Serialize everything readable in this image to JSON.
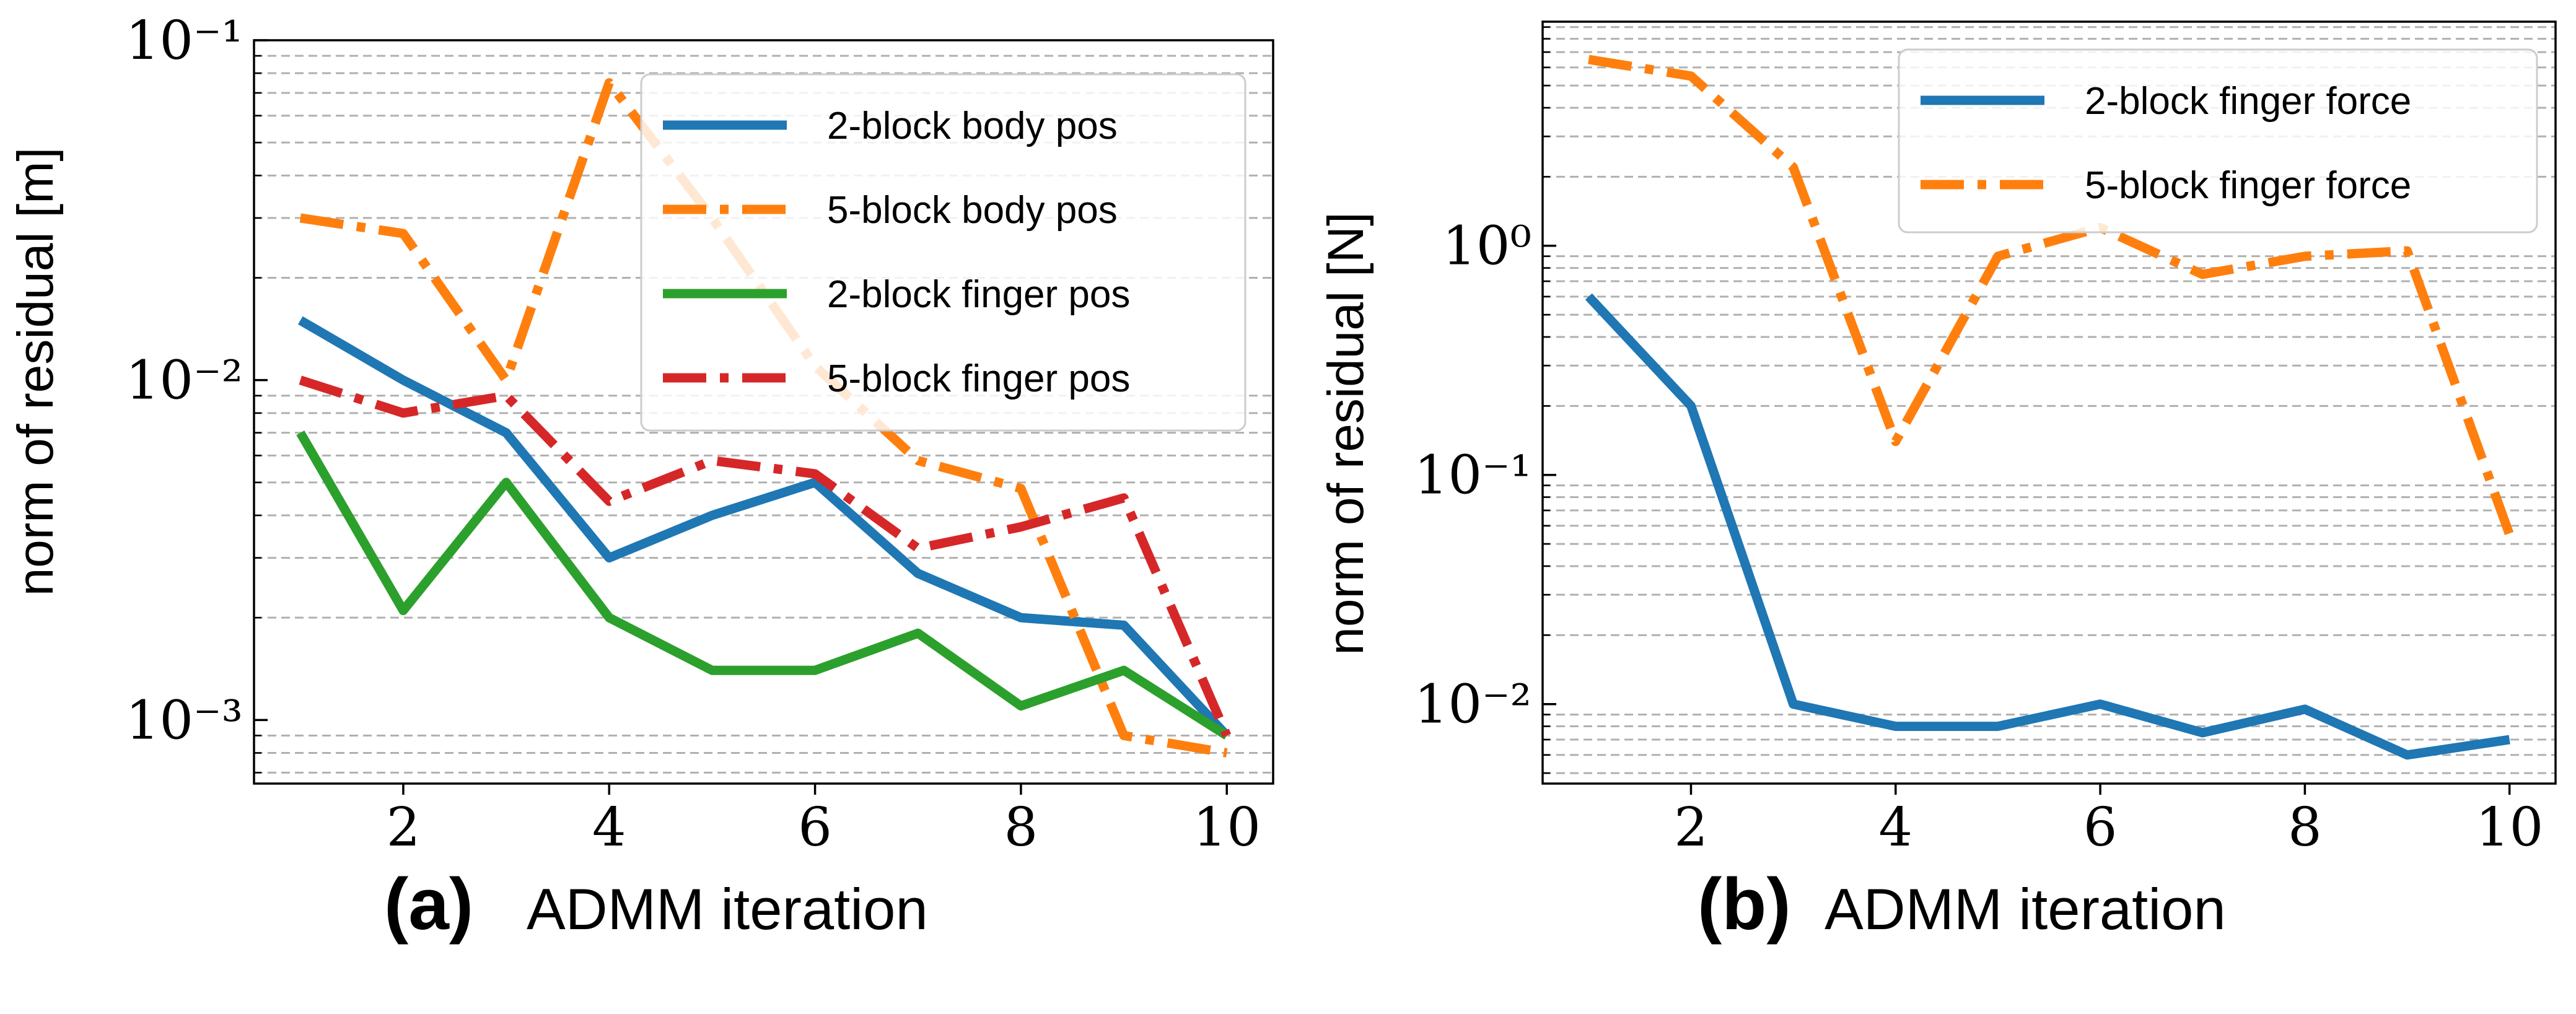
{
  "figure": {
    "panels": [
      {
        "letter": "(a)",
        "xlabel": "ADMM iteration"
      },
      {
        "letter": "(b)",
        "xlabel": "ADMM iteration"
      }
    ]
  },
  "chart_data": [
    {
      "type": "line",
      "title": "",
      "xlabel": "ADMM iteration",
      "ylabel": "norm of residual [m]",
      "yscale": "log",
      "xlim": [
        0.55,
        10.45
      ],
      "ylim": [
        0.00065,
        0.1
      ],
      "xticks": [
        2,
        4,
        6,
        8,
        10
      ],
      "yticks": [
        {
          "value": 0.001,
          "base": "10",
          "exp": "−3"
        },
        {
          "value": 0.01,
          "base": "10",
          "exp": "−2"
        },
        {
          "value": 0.1,
          "base": "10",
          "exp": "−1"
        }
      ],
      "legend_position": "top-right",
      "x": [
        1,
        2,
        3,
        4,
        5,
        6,
        7,
        8,
        9,
        10
      ],
      "series": [
        {
          "name": "2-block body pos",
          "color": "#1f77b4",
          "style": "solid",
          "values": [
            0.015,
            0.01,
            0.007,
            0.003,
            0.004,
            0.005,
            0.0027,
            0.002,
            0.0019,
            0.0009
          ]
        },
        {
          "name": "5-block body pos",
          "color": "#ff7f0e",
          "style": "dashdot",
          "values": [
            0.03,
            0.027,
            0.01,
            0.075,
            0.03,
            0.011,
            0.0058,
            0.0048,
            0.0009,
            0.0008
          ]
        },
        {
          "name": "2-block finger pos",
          "color": "#2ca02c",
          "style": "solid",
          "values": [
            0.007,
            0.0021,
            0.005,
            0.002,
            0.0014,
            0.0014,
            0.0018,
            0.0011,
            0.0014,
            0.0009
          ]
        },
        {
          "name": "5-block finger pos",
          "color": "#d62728",
          "style": "dashdot",
          "values": [
            0.01,
            0.008,
            0.009,
            0.0044,
            0.0058,
            0.0053,
            0.0032,
            0.0037,
            0.0045,
            0.0009
          ]
        }
      ]
    },
    {
      "type": "line",
      "title": "",
      "xlabel": "ADMM iteration",
      "ylabel": "norm of residual [N]",
      "yscale": "log",
      "xlim": [
        0.55,
        10.45
      ],
      "ylim": [
        0.0045,
        9.5
      ],
      "xticks": [
        2,
        4,
        6,
        8,
        10
      ],
      "yticks": [
        {
          "value": 0.01,
          "base": "10",
          "exp": "−2"
        },
        {
          "value": 0.1,
          "base": "10",
          "exp": "−1"
        },
        {
          "value": 1,
          "base": "10",
          "exp": "0"
        }
      ],
      "legend_position": "top-right",
      "x": [
        1,
        2,
        3,
        4,
        5,
        6,
        7,
        8,
        9,
        10
      ],
      "series": [
        {
          "name": "2-block finger force",
          "color": "#1f77b4",
          "style": "solid",
          "values": [
            0.6,
            0.2,
            0.01,
            0.008,
            0.008,
            0.01,
            0.0075,
            0.0095,
            0.006,
            0.007
          ]
        },
        {
          "name": "5-block finger force",
          "color": "#ff7f0e",
          "style": "dashdot",
          "values": [
            6.5,
            5.5,
            2.2,
            0.14,
            0.9,
            1.2,
            0.75,
            0.9,
            0.95,
            0.055
          ]
        }
      ]
    }
  ]
}
